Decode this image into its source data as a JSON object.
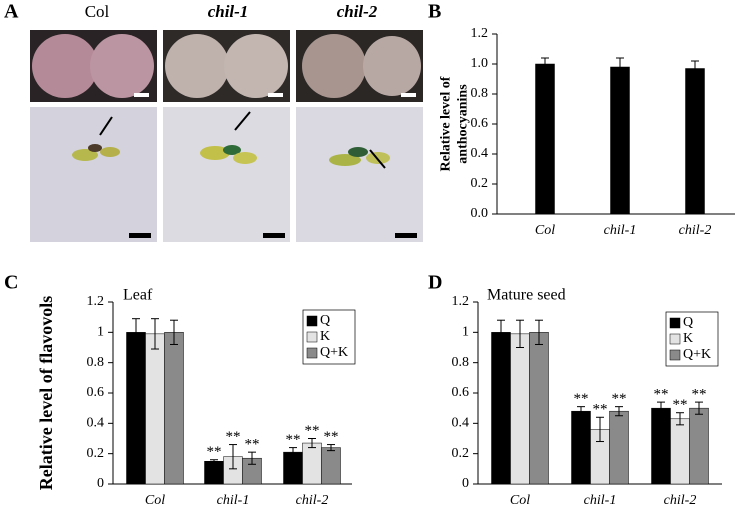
{
  "figure": {
    "panel_letters": [
      "A",
      "B",
      "C",
      "D"
    ],
    "panel_a_columns": [
      "Col",
      "chil-1",
      "chil-2"
    ]
  },
  "chart_data": [
    {
      "type": "bar",
      "ylabel": [
        "Relative level of",
        "anthocyanins"
      ],
      "categories": [
        "Col",
        "chil-1",
        "chil-2"
      ],
      "values": [
        1.0,
        0.98,
        0.97
      ],
      "errors": [
        0.04,
        0.06,
        0.05
      ],
      "color": "#000000",
      "ylim": [
        0,
        1.2
      ],
      "yticks": [
        {
          "value": 0,
          "label": "0.0"
        },
        0.2,
        0.4,
        0.6,
        0.8,
        {
          "value": 1,
          "label": "1.0"
        },
        1.2
      ]
    },
    {
      "type": "bar",
      "title": "Leaf",
      "ylabel": "Relative level of flavovols",
      "categories": [
        "Col",
        "chil-1",
        "chil-2"
      ],
      "series": [
        {
          "name": "Q",
          "color": "#000000",
          "values": [
            1.0,
            0.15,
            0.21
          ],
          "errors": [
            0.09,
            0.01,
            0.03
          ],
          "marks": [
            null,
            "**",
            "**"
          ]
        },
        {
          "name": "K",
          "color": "#e3e3e3",
          "values": [
            0.99,
            0.18,
            0.27
          ],
          "errors": [
            0.1,
            0.08,
            0.03
          ],
          "marks": [
            null,
            "**",
            "**"
          ]
        },
        {
          "name": "Q+K",
          "color": "#8a8a8a",
          "values": [
            1.0,
            0.17,
            0.24
          ],
          "errors": [
            0.08,
            0.04,
            0.02
          ],
          "marks": [
            null,
            "**",
            "**"
          ]
        }
      ],
      "ylim": [
        0,
        1.2
      ],
      "yticks": [
        0,
        0.2,
        0.4,
        0.6,
        0.8,
        1,
        1.2
      ],
      "legend": "upper right"
    },
    {
      "type": "bar",
      "title": "Mature seed",
      "categories": [
        "Col",
        "chil-1",
        "chil-2"
      ],
      "series": [
        {
          "name": "Q",
          "color": "#000000",
          "values": [
            1.0,
            0.48,
            0.5
          ],
          "errors": [
            0.08,
            0.03,
            0.04
          ],
          "marks": [
            null,
            "**",
            "**"
          ]
        },
        {
          "name": "K",
          "color": "#e3e3e3",
          "values": [
            0.99,
            0.36,
            0.43
          ],
          "errors": [
            0.09,
            0.08,
            0.04
          ],
          "marks": [
            null,
            "**",
            "**"
          ]
        },
        {
          "name": "Q+K",
          "color": "#8a8a8a",
          "values": [
            1.0,
            0.48,
            0.5
          ],
          "errors": [
            0.08,
            0.03,
            0.04
          ],
          "marks": [
            null,
            "**",
            "**"
          ]
        }
      ],
      "ylim": [
        0,
        1.2
      ],
      "yticks": [
        0,
        0.2,
        0.4,
        0.6,
        0.8,
        1,
        1.2
      ],
      "legend": "upper right"
    }
  ]
}
